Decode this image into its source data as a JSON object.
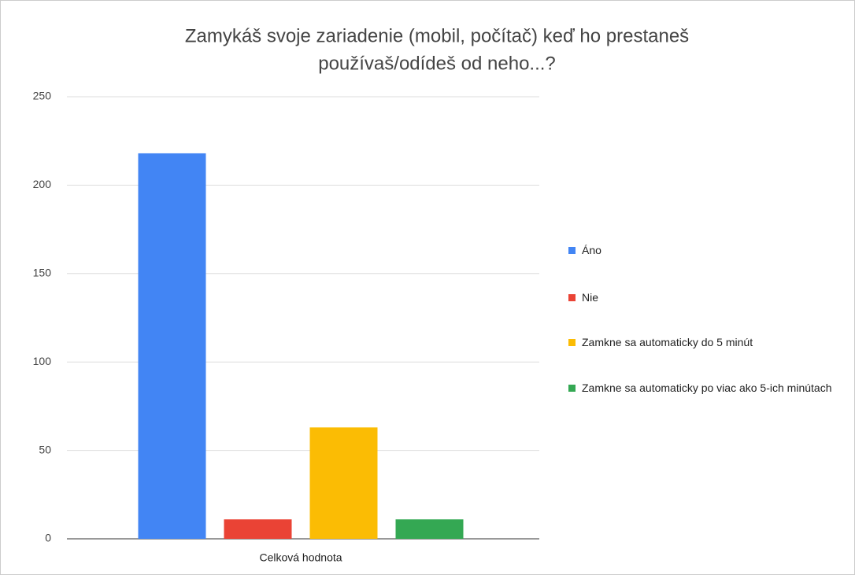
{
  "chart_data": {
    "type": "bar",
    "title": [
      "Zamykáš svoje zariadenie (mobil, počítač) keď ho prestaneš",
      "používaš/odídeš od neho...?"
    ],
    "categories": [
      "Celková hodnota"
    ],
    "series": [
      {
        "name": "Áno",
        "color": "#4285f4",
        "values": [
          218
        ]
      },
      {
        "name": "Nie",
        "color": "#ea4335",
        "values": [
          11
        ]
      },
      {
        "name": "Zamkne sa automaticky do 5 minút",
        "color": "#fbbc04",
        "values": [
          63
        ]
      },
      {
        "name": "Zamkne sa automaticky po viac ako 5-ich minútach",
        "color": "#34a853",
        "values": [
          11
        ]
      }
    ],
    "ylim": [
      0,
      250
    ],
    "yticks": [
      0,
      50,
      100,
      150,
      200,
      250
    ],
    "grid": true,
    "legend": "right"
  }
}
